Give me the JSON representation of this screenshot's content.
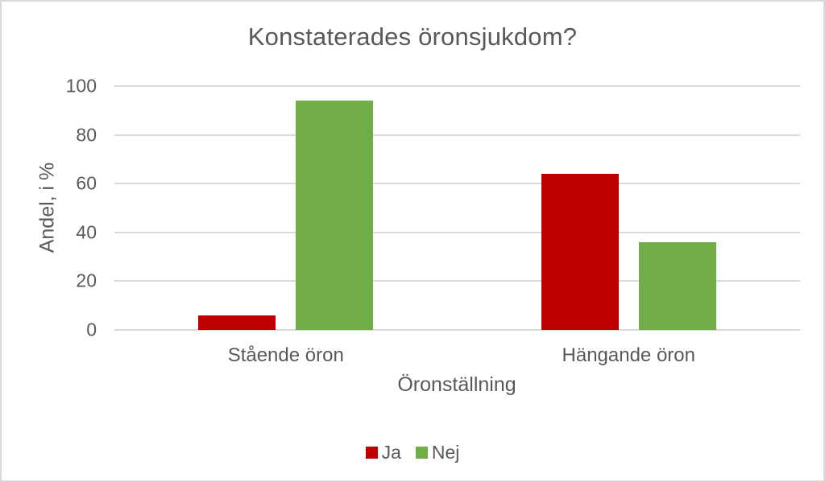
{
  "chart_data": {
    "type": "bar",
    "title": "Konstaterades öronsjukdom?",
    "xlabel": "Öronställning",
    "ylabel": "Andel, i %",
    "categories": [
      "Stående öron",
      "Hängande öron"
    ],
    "series": [
      {
        "name": "Ja",
        "color": "#C00000",
        "values": [
          6,
          64
        ]
      },
      {
        "name": "Nej",
        "color": "#70AD47",
        "values": [
          94,
          36
        ]
      }
    ],
    "ylim": [
      0,
      100
    ],
    "yticks": [
      0,
      20,
      40,
      60,
      80,
      100
    ],
    "grid": true,
    "legend_position": "bottom"
  },
  "colors": {
    "text": "#595959",
    "gridline": "#D9D9D9",
    "frame_border": "#D9D9D9",
    "background": "#FFFFFF"
  }
}
